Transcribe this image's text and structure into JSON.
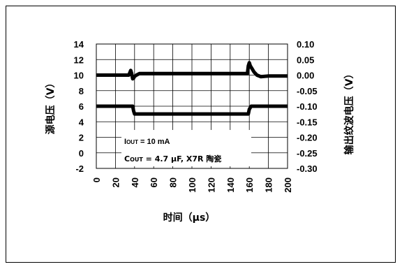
{
  "chart_data": {
    "type": "line",
    "xlabel": "时间（µs）",
    "ylabel_left": "源电压（V）",
    "ylabel_right": "输出纹波电压（V）",
    "x_ticks": [
      "0",
      "20",
      "40",
      "60",
      "80",
      "100",
      "120",
      "140",
      "160",
      "180",
      "200"
    ],
    "y_left_ticks": [
      "-2",
      "0",
      "2",
      "4",
      "6",
      "8",
      "10",
      "12",
      "14"
    ],
    "y_right_ticks": [
      "-0.30",
      "-0.25",
      "-0.20",
      "-0.15",
      "-0.10",
      "-0.05",
      "0.00",
      "0.05",
      "0.10"
    ],
    "xlim": [
      0,
      200
    ],
    "ylim_left": [
      -2,
      14
    ],
    "ylim_right": [
      -0.3,
      0.1
    ],
    "grid": true,
    "annotations": {
      "line1": {
        "prefix": "I",
        "sub": "OUT",
        "rest": " = 10 mA"
      },
      "line2": {
        "prefix": "C",
        "sub": "OUT",
        "rest": " = 4.7 µF, X7R 陶瓷"
      }
    },
    "series": [
      {
        "axis": "right",
        "x": [
          0,
          34,
          36,
          37,
          38,
          39,
          40,
          42,
          45,
          60,
          80,
          100,
          120,
          140,
          155,
          158,
          159,
          160,
          161,
          163,
          165,
          168,
          172,
          180,
          200
        ],
        "y": [
          0.0,
          0.0,
          0.015,
          0.005,
          -0.012,
          -0.01,
          -0.004,
          0.0,
          0.005,
          0.005,
          0.005,
          0.005,
          0.005,
          0.005,
          0.005,
          0.005,
          0.03,
          0.04,
          0.03,
          0.02,
          0.01,
          0.0,
          -0.005,
          -0.003,
          -0.003
        ]
      },
      {
        "axis": "left",
        "x": [
          0,
          36,
          38,
          39,
          40,
          60,
          80,
          100,
          120,
          140,
          157,
          159,
          160,
          162,
          180,
          200
        ],
        "y": [
          6.0,
          6.0,
          6.0,
          5.4,
          5.0,
          5.0,
          5.0,
          5.0,
          5.0,
          5.0,
          5.0,
          5.0,
          5.6,
          6.0,
          6.0,
          6.0
        ]
      }
    ]
  }
}
